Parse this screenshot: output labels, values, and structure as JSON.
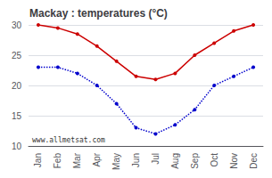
{
  "chart_data": {
    "type": "line",
    "title": "Mackay : temperatures (°C)",
    "categories": [
      "Jan",
      "Feb",
      "Mar",
      "Apr",
      "May",
      "Jun",
      "Jul",
      "Aug",
      "Sep",
      "Oct",
      "Nov",
      "Dec"
    ],
    "series": [
      {
        "color": "#cc0000",
        "marker": "circle",
        "line_style": "solid",
        "values": [
          30,
          29.5,
          28.5,
          26.5,
          24,
          21.5,
          21,
          22,
          25,
          27,
          29,
          30
        ]
      },
      {
        "color": "#0000cc",
        "marker": "circle",
        "line_style": "dotted",
        "values": [
          23,
          23,
          22,
          20,
          17,
          13,
          12,
          13.5,
          16,
          20,
          21.5,
          23
        ]
      }
    ],
    "ylim": [
      10,
      30
    ],
    "yticks": [
      10,
      15,
      20,
      25,
      30
    ],
    "grid": true,
    "annotation": "www.allmetsat.com"
  }
}
